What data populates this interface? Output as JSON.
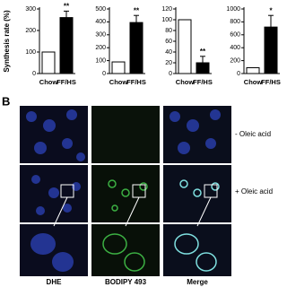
{
  "chart_data": [
    {
      "type": "bar",
      "ylabel": "Synthesis rate (%)",
      "categories": [
        "Chow",
        "FF/HS"
      ],
      "values": [
        100,
        260
      ],
      "errors": [
        0,
        30
      ],
      "significance": [
        null,
        "**"
      ],
      "colors": [
        "#ffffff",
        "#000000"
      ],
      "ylim": [
        0,
        300
      ],
      "yticks": [
        0,
        100,
        200,
        300
      ]
    },
    {
      "type": "bar",
      "categories": [
        "Chow",
        "FF/HS"
      ],
      "values": [
        90,
        395
      ],
      "errors": [
        0,
        55
      ],
      "significance": [
        null,
        "**"
      ],
      "colors": [
        "#ffffff",
        "#000000"
      ],
      "ylim": [
        0,
        500
      ],
      "yticks": [
        0,
        100,
        200,
        300,
        400,
        500
      ]
    },
    {
      "type": "bar",
      "categories": [
        "Chow",
        "FF/HS"
      ],
      "values": [
        100,
        20
      ],
      "errors": [
        0,
        12
      ],
      "significance": [
        null,
        "**"
      ],
      "colors": [
        "#ffffff",
        "#000000"
      ],
      "ylim": [
        0,
        120
      ],
      "yticks": [
        0,
        20,
        40,
        60,
        80,
        100,
        120
      ]
    },
    {
      "type": "bar",
      "categories": [
        "Chow",
        "FF/HS"
      ],
      "values": [
        90,
        720
      ],
      "errors": [
        0,
        180
      ],
      "significance": [
        null,
        "*"
      ],
      "colors": [
        "#ffffff",
        "#000000"
      ],
      "ylim": [
        0,
        1000
      ],
      "yticks": [
        0,
        200,
        400,
        600,
        800,
        1000
      ]
    }
  ],
  "panel_b": {
    "label": "B",
    "columns": [
      "DHE",
      "BODIPY 493",
      "Merge"
    ],
    "rows": [
      "- Oleic acid",
      "+ Oleic acid"
    ]
  }
}
